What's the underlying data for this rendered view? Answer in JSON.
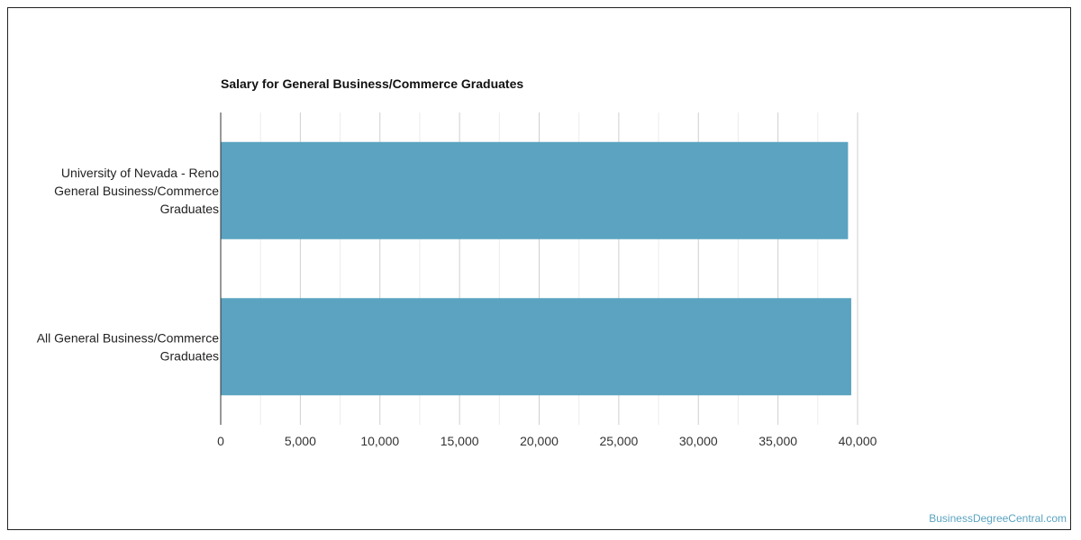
{
  "chart_data": {
    "type": "bar",
    "orientation": "horizontal",
    "title": "Salary for General Business/Commerce Graduates",
    "categories": [
      [
        "University of Nevada - Reno",
        "General Business/Commerce",
        "Graduates"
      ],
      [
        "All General Business/Commerce",
        "Graduates"
      ]
    ],
    "values": [
      39400,
      39600
    ],
    "xlim": [
      0,
      40000
    ],
    "x_ticks": [
      "0",
      "5,000",
      "10,000",
      "15,000",
      "20,000",
      "25,000",
      "30,000",
      "35,000",
      "40,000"
    ],
    "x_tick_values": [
      0,
      5000,
      10000,
      15000,
      20000,
      25000,
      30000,
      35000,
      40000
    ],
    "grid": true,
    "bar_color": "#5ba3c1",
    "grid_color": "#d9d9d9",
    "xlabel": "",
    "ylabel": ""
  },
  "watermark": "BusinessDegreeCentral.com"
}
